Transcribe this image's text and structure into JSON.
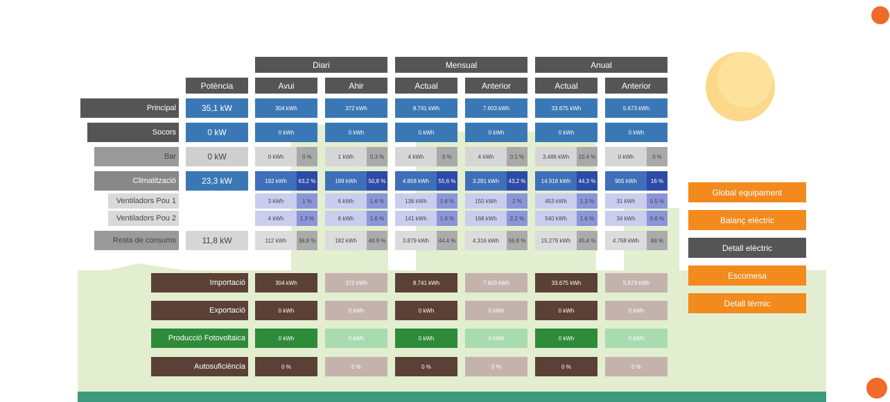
{
  "table": {
    "groups": [
      "Diari",
      "Mensual",
      "Anual"
    ],
    "columns": [
      "Potència",
      "Avui",
      "Ahir",
      "Actual",
      "Anterior",
      "Actual",
      "Anterior"
    ],
    "rows": [
      {
        "label": "Principal",
        "potencia": "35,1 kW",
        "values": [
          "304 kWh",
          "372 kWh",
          "8.741 kWh",
          "7.603 kWh",
          "33.675 kWh",
          "5.673 kWh"
        ]
      },
      {
        "label": "Socors",
        "potencia": "0 kW",
        "values": [
          "0 kWh",
          "0 kWh",
          "0 kWh",
          "0 kWh",
          "0 kWh",
          "0 kWh"
        ]
      },
      {
        "label": "Bar",
        "potencia": "0 kW",
        "values": [
          [
            "0 kWh",
            "0 %"
          ],
          [
            "1 kWh",
            "0.3 %"
          ],
          [
            "4 kWh",
            "0 %"
          ],
          [
            "4 kWh",
            "0.1 %"
          ],
          [
            "3.486 kWh",
            "10.4 %"
          ],
          [
            "0 kWh",
            "0 %"
          ]
        ]
      },
      {
        "label": "Climatització",
        "potencia": "23,3 kW",
        "values": [
          [
            "192 kWh",
            "63,2 %"
          ],
          [
            "189 kWh",
            "50,8 %"
          ],
          [
            "4.858 kWh",
            "55,6 %"
          ],
          [
            "3.281 kWh",
            "43,2 %"
          ],
          [
            "14.918 kWh",
            "44,3 %"
          ],
          [
            "905 kWh",
            "16 %"
          ]
        ]
      },
      {
        "label": "Ventiladors Pou 1",
        "potencia": null,
        "values": [
          [
            "3 kWh",
            "1 %"
          ],
          [
            "6 kWh",
            "1.6 %"
          ],
          [
            "136 kWh",
            "1.6 %"
          ],
          [
            "150 kWh",
            "2 %"
          ],
          [
            "453 kWh",
            "1,3 %"
          ],
          [
            "31 kWh",
            "0.5 %"
          ]
        ]
      },
      {
        "label": "Ventiladors Pou 2",
        "potencia": null,
        "values": [
          [
            "4 kWh",
            "1,3 %"
          ],
          [
            "6 kWh",
            "1.6 %"
          ],
          [
            "141 kWh",
            "1.6 %"
          ],
          [
            "168 kWh",
            "2,2 %"
          ],
          [
            "540 kWh",
            "1.6 %"
          ],
          [
            "34 kWh",
            "0.6 %"
          ]
        ]
      },
      {
        "label": "Resta de consums",
        "potencia": "11,8 kW",
        "values": [
          [
            "112 kWh",
            "36.8 %"
          ],
          [
            "182 kWh",
            "48.9 %"
          ],
          [
            "3.879 kWh",
            "44.4 %"
          ],
          [
            "4.316 kWh",
            "56.8 %"
          ],
          [
            "15.279 kWh",
            "45.4 %"
          ],
          [
            "4.768 kWh",
            "84 %"
          ]
        ]
      }
    ]
  },
  "balance": {
    "rows": [
      {
        "label": "Importació",
        "values": [
          "304 kWh",
          "372 kWh",
          "8.741 kWh",
          "7.603 kWh",
          "33.675 kWh",
          "5.673 kWh"
        ]
      },
      {
        "label": "Exportació",
        "values": [
          "0 kWh",
          "0 kWh",
          "0 kWh",
          "0 kWh",
          "0 kWh",
          "0 kWh"
        ]
      },
      {
        "label": "Producció Fotovoltaica",
        "values": [
          "0 kWh",
          "0 kWh",
          "0 kWh",
          "0 kWh",
          "0 kWh",
          "0 kWh"
        ]
      },
      {
        "label": "Autosuficiència",
        "values": [
          "0 %",
          "0 %",
          "0 %",
          "0 %",
          "0 %",
          "0 %"
        ]
      }
    ]
  },
  "menu": [
    "Global equipament",
    "Balanç elèctric",
    "Detall elèctric",
    "Escomesa",
    "Detall tèrmic"
  ]
}
